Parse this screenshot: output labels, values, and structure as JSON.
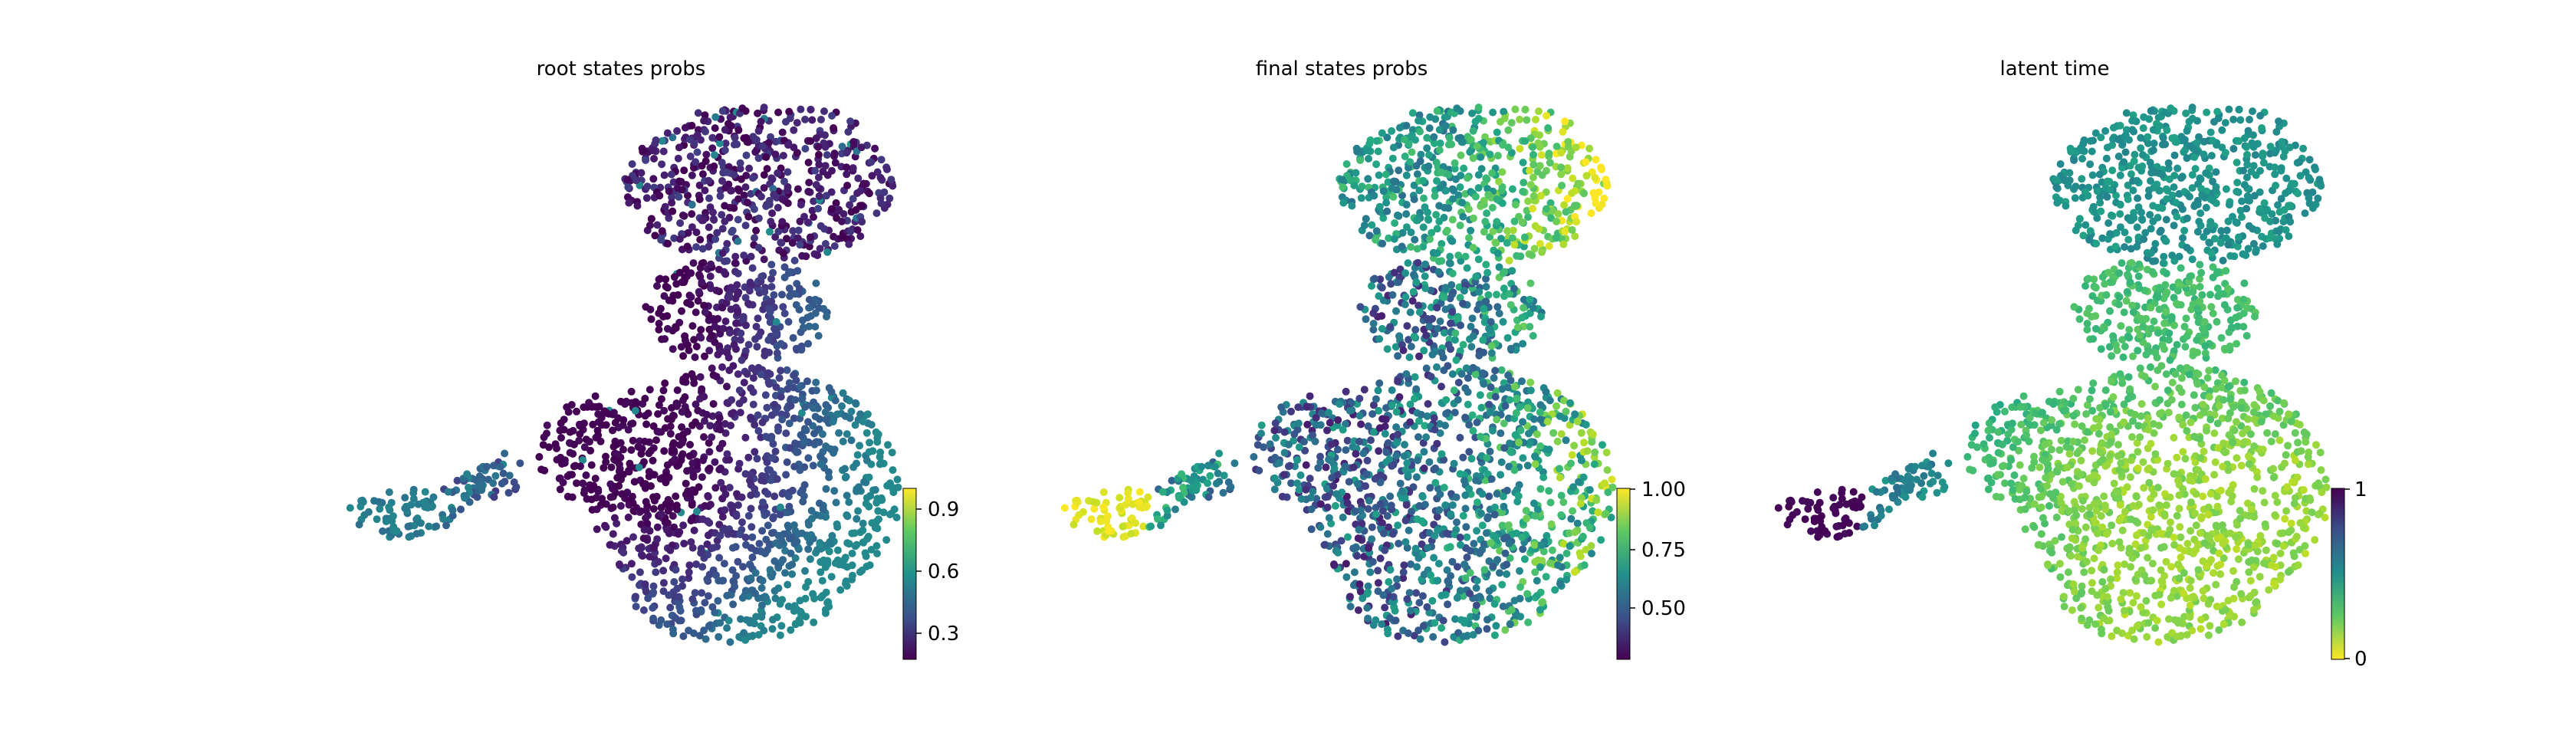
{
  "chart_data": [
    {
      "type": "scatter",
      "title": "root states probs",
      "colormap": "viridis",
      "colorbar": {
        "ticks": [
          "0.3",
          "0.6",
          "0.9"
        ],
        "tick_values": [
          0.3,
          0.6,
          0.9
        ],
        "range": [
          0.15,
          1.0
        ]
      },
      "regions": {
        "top_blob": "0.1-0.35",
        "left_cluster": "0.45-0.55",
        "main_body": "0.1-0.4"
      }
    },
    {
      "type": "scatter",
      "title": "final states probs",
      "colormap": "viridis",
      "colorbar": {
        "ticks": [
          "0.50",
          "0.75",
          "1.00"
        ],
        "tick_values": [
          0.5,
          0.75,
          1.0
        ],
        "range": [
          0.3,
          1.0
        ]
      },
      "regions": {
        "top_blob": "0.6-0.85",
        "left_cluster": "0.95-1.0",
        "main_body": "0.45-0.8"
      }
    },
    {
      "type": "scatter",
      "title": "latent time",
      "colormap": "viridis_r",
      "colorbar": {
        "ticks": [
          "0",
          "1"
        ],
        "tick_values": [
          0,
          1
        ],
        "range": [
          0,
          1
        ]
      },
      "regions": {
        "top_blob": "0.45-0.55",
        "left_cluster": "0.95-1.0",
        "main_body": "0.1-0.3"
      }
    }
  ]
}
